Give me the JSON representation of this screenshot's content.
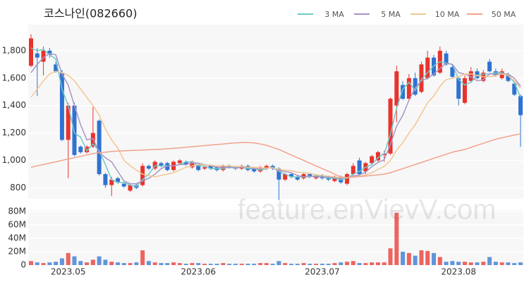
{
  "chart_data": {
    "type": "candlestick",
    "title": "코스나인(082660)",
    "watermark": "feature.enVievV.com",
    "categories": [
      null,
      null,
      null,
      null,
      null,
      null,
      "2023.05",
      null,
      null,
      null,
      null,
      null,
      null,
      null,
      null,
      null,
      null,
      null,
      null,
      null,
      null,
      null,
      null,
      null,
      null,
      null,
      null,
      "2023.06",
      null,
      null,
      null,
      null,
      null,
      null,
      null,
      null,
      null,
      null,
      null,
      null,
      null,
      null,
      null,
      null,
      null,
      null,
      null,
      "2023.07",
      null,
      null,
      null,
      null,
      null,
      null,
      null,
      null,
      null,
      null,
      null,
      null,
      null,
      null,
      null,
      null,
      null,
      null,
      null,
      null,
      null,
      "2023.08",
      null,
      null,
      null,
      null,
      null,
      null,
      null,
      null,
      null,
      null
    ],
    "open": [
      1690,
      1780,
      1720,
      1800,
      1700,
      1640,
      1150,
      1400,
      1100,
      1060,
      1100,
      1290,
      900,
      820,
      870,
      830,
      780,
      820,
      820,
      960,
      940,
      980,
      980,
      930,
      980,
      990,
      950,
      970,
      940,
      960,
      950,
      930,
      960,
      950,
      940,
      960,
      940,
      920,
      940,
      960,
      940,
      860,
      900,
      880,
      870,
      900,
      870,
      890,
      880,
      850,
      880,
      830,
      900,
      1000,
      920,
      980,
      1000,
      1040,
      1050,
      1400,
      1550,
      1450,
      1600,
      1500,
      1600,
      1750,
      1640,
      1780,
      1680,
      1600,
      1420,
      1580,
      1650,
      1580,
      1720,
      1650,
      1600,
      1620,
      1560,
      1470
    ],
    "high": [
      1920,
      1820,
      1830,
      1820,
      1720,
      1660,
      1420,
      1420,
      1110,
      1110,
      1390,
      1300,
      910,
      880,
      880,
      840,
      830,
      830,
      980,
      970,
      1000,
      990,
      990,
      1000,
      1010,
      1000,
      1000,
      980,
      960,
      970,
      960,
      970,
      970,
      960,
      970,
      970,
      950,
      960,
      970,
      970,
      950,
      910,
      910,
      890,
      910,
      910,
      900,
      900,
      890,
      890,
      890,
      910,
      980,
      1020,
      990,
      1040,
      1070,
      1070,
      1460,
      1690,
      1580,
      1630,
      1640,
      1720,
      1800,
      1770,
      1830,
      1800,
      1700,
      1610,
      1620,
      1680,
      1670,
      1660,
      1740,
      1670,
      1670,
      1640,
      1570,
      1480
    ],
    "low": [
      1680,
      1470,
      1620,
      1750,
      1640,
      1140,
      870,
      1030,
      1050,
      1050,
      1090,
      890,
      800,
      740,
      830,
      800,
      770,
      790,
      810,
      930,
      930,
      950,
      920,
      920,
      970,
      960,
      940,
      920,
      930,
      930,
      920,
      920,
      940,
      930,
      930,
      920,
      910,
      910,
      930,
      930,
      710,
      850,
      870,
      850,
      860,
      870,
      860,
      860,
      850,
      840,
      830,
      820,
      890,
      890,
      900,
      970,
      990,
      990,
      1040,
      1280,
      1440,
      1440,
      1470,
      1490,
      1590,
      1610,
      1630,
      1690,
      1600,
      1400,
      1410,
      1570,
      1590,
      1570,
      1640,
      1610,
      1590,
      1570,
      1470,
      1100
    ],
    "close": [
      1890,
      1750,
      1800,
      1770,
      1650,
      1150,
      1400,
      1040,
      1060,
      1100,
      1200,
      900,
      820,
      860,
      840,
      810,
      820,
      800,
      960,
      940,
      990,
      960,
      930,
      990,
      1000,
      970,
      990,
      930,
      950,
      940,
      930,
      960,
      950,
      940,
      960,
      930,
      920,
      950,
      960,
      940,
      860,
      900,
      880,
      860,
      900,
      880,
      890,
      870,
      860,
      880,
      840,
      900,
      960,
      900,
      980,
      1030,
      1060,
      1050,
      1450,
      1650,
      1450,
      1600,
      1480,
      1700,
      1750,
      1620,
      1800,
      1700,
      1610,
      1450,
      1600,
      1650,
      1600,
      1640,
      1650,
      1620,
      1650,
      1580,
      1480,
      1330
    ],
    "up_color": "#e8332c",
    "down_color": "#2f73d1",
    "ylim": [
      720,
      1990
    ],
    "yticks": [
      {
        "value": 800,
        "label": "800"
      },
      {
        "value": 1000,
        "label": "1,000"
      },
      {
        "value": 1200,
        "label": "1,200"
      },
      {
        "value": 1400,
        "label": "1,400"
      },
      {
        "value": 1600,
        "label": "1,600"
      },
      {
        "value": 1800,
        "label": "1,800"
      }
    ],
    "grid": true,
    "legend": "top-right",
    "series": [
      {
        "name": "3 MA",
        "color": "#6fc9c9",
        "values": [
          1820,
          1800,
          1810,
          1770,
          1740,
          1520,
          1400,
          1200,
          1170,
          1070,
          1120,
          1070,
          970,
          860,
          840,
          840,
          820,
          810,
          860,
          900,
          960,
          960,
          960,
          960,
          970,
          990,
          990,
          960,
          960,
          940,
          940,
          940,
          950,
          950,
          950,
          940,
          940,
          930,
          940,
          950,
          920,
          900,
          880,
          880,
          880,
          880,
          890,
          880,
          870,
          870,
          860,
          870,
          900,
          920,
          950,
          970,
          1020,
          1050,
          1190,
          1380,
          1520,
          1570,
          1510,
          1590,
          1640,
          1690,
          1720,
          1710,
          1700,
          1590,
          1550,
          1570,
          1620,
          1630,
          1630,
          1640,
          1640,
          1620,
          1570,
          1460
        ]
      },
      {
        "name": "5 MA",
        "color": "#a894c6",
        "values": [
          1640,
          1700,
          1750,
          1780,
          1770,
          1630,
          1550,
          1400,
          1260,
          1150,
          1160,
          1060,
          1020,
          990,
          920,
          850,
          830,
          830,
          850,
          870,
          900,
          940,
          960,
          960,
          970,
          970,
          980,
          980,
          970,
          960,
          950,
          950,
          950,
          945,
          950,
          950,
          940,
          940,
          945,
          945,
          925,
          920,
          910,
          890,
          880,
          885,
          880,
          880,
          880,
          875,
          870,
          870,
          885,
          895,
          915,
          955,
          985,
          1005,
          1115,
          1250,
          1330,
          1440,
          1530,
          1580,
          1600,
          1630,
          1670,
          1710,
          1700,
          1640,
          1630,
          1610,
          1580,
          1590,
          1630,
          1630,
          1630,
          1630,
          1600,
          1540
        ]
      },
      {
        "name": "10 MA",
        "color": "#f2c693",
        "values": [
          1460,
          1520,
          1580,
          1630,
          1650,
          1640,
          1620,
          1580,
          1520,
          1460,
          1400,
          1330,
          1230,
          1150,
          1090,
          1000,
          960,
          930,
          900,
          890,
          880,
          890,
          900,
          910,
          930,
          950,
          960,
          970,
          970,
          965,
          960,
          960,
          960,
          955,
          955,
          950,
          950,
          945,
          945,
          945,
          935,
          930,
          925,
          915,
          910,
          905,
          895,
          890,
          885,
          880,
          875,
          875,
          880,
          885,
          895,
          910,
          935,
          955,
          1000,
          1075,
          1130,
          1200,
          1260,
          1340,
          1420,
          1470,
          1540,
          1590,
          1600,
          1610,
          1630,
          1630,
          1620,
          1610,
          1610,
          1620,
          1630,
          1620,
          1580,
          1530
        ]
      },
      {
        "name": "50 MA",
        "color": "#f2a28c",
        "values": [
          950,
          960,
          970,
          980,
          990,
          1000,
          1010,
          1020,
          1030,
          1040,
          1050,
          1055,
          1060,
          1065,
          1068,
          1070,
          1072,
          1074,
          1076,
          1078,
          1080,
          1082,
          1085,
          1088,
          1092,
          1096,
          1100,
          1104,
          1108,
          1112,
          1116,
          1120,
          1124,
          1128,
          1130,
          1130,
          1128,
          1120,
          1110,
          1095,
          1080,
          1060,
          1040,
          1020,
          1000,
          980,
          960,
          940,
          920,
          900,
          880,
          875,
          878,
          882,
          886,
          890,
          895,
          900,
          910,
          925,
          940,
          955,
          970,
          985,
          1000,
          1015,
          1030,
          1045,
          1060,
          1070,
          1080,
          1095,
          1110,
          1125,
          1140,
          1155,
          1165,
          1175,
          1185,
          1195
        ]
      }
    ],
    "volume": {
      "ylim": [
        0,
        82000000
      ],
      "yticks": [
        {
          "value": 0,
          "label": "0"
        },
        {
          "value": 20000000,
          "label": "20M"
        },
        {
          "value": 40000000,
          "label": "40M"
        },
        {
          "value": 60000000,
          "label": "60M"
        },
        {
          "value": 80000000,
          "label": "80M"
        }
      ],
      "values": [
        6000000,
        4000000,
        3000000,
        4000000,
        5000000,
        10000000,
        18000000,
        13000000,
        6000000,
        4000000,
        8000000,
        13000000,
        8000000,
        5000000,
        4000000,
        3000000,
        3000000,
        4000000,
        22000000,
        6000000,
        4000000,
        3000000,
        3000000,
        4000000,
        3000000,
        2000000,
        3000000,
        3000000,
        2000000,
        2000000,
        2000000,
        3000000,
        2000000,
        2000000,
        2000000,
        2000000,
        2000000,
        3000000,
        3000000,
        2000000,
        6000000,
        3000000,
        2000000,
        2000000,
        3000000,
        2000000,
        2000000,
        2000000,
        2000000,
        3000000,
        4000000,
        5000000,
        6000000,
        3000000,
        3000000,
        4000000,
        4000000,
        4000000,
        25000000,
        78000000,
        20000000,
        18000000,
        14000000,
        22000000,
        21000000,
        18000000,
        12000000,
        5000000,
        6000000,
        5000000,
        5000000,
        4000000,
        4000000,
        5000000,
        12000000,
        5000000,
        4000000,
        4000000,
        3000000,
        4000000
      ]
    }
  }
}
